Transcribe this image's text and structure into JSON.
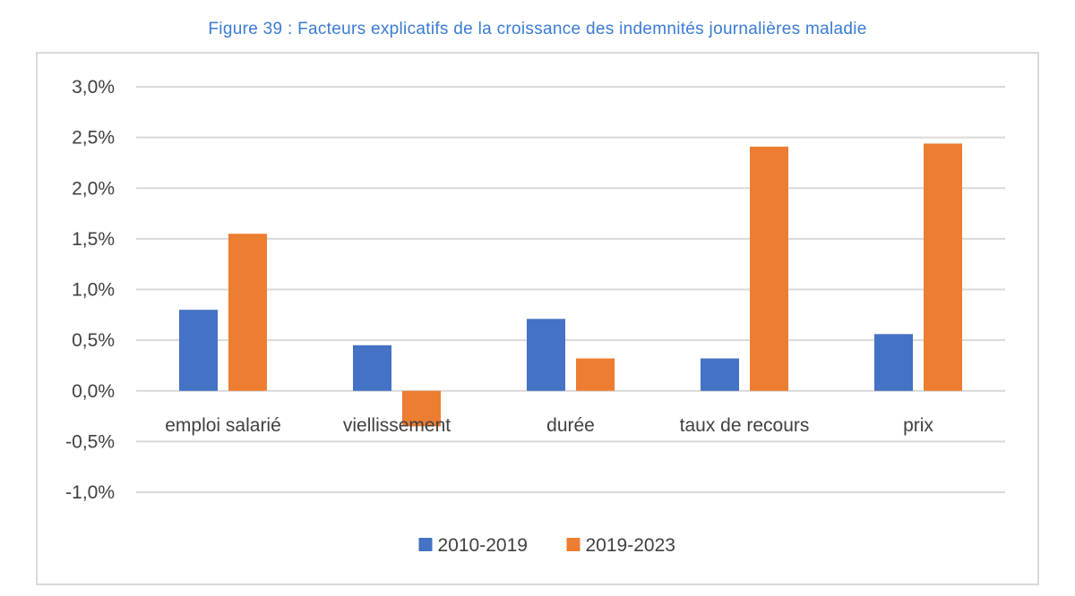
{
  "caption": "Figure 39 :  Facteurs explicatifs de la croissance des indemnités journalières maladie",
  "colors": {
    "series_1": "#4472c4",
    "series_2": "#ed7d31",
    "grid": "#d9d9d9",
    "caption": "#3a7bd5"
  },
  "chart_data": {
    "type": "bar",
    "title": "Figure 39 :  Facteurs explicatifs de la croissance des indemnités journalières maladie",
    "xlabel": "",
    "ylabel": "",
    "ylim": [
      -0.01,
      0.03
    ],
    "yticks": [
      {
        "value": 0.03,
        "label": "3,0%"
      },
      {
        "value": 0.025,
        "label": "2,5%"
      },
      {
        "value": 0.02,
        "label": "2,0%"
      },
      {
        "value": 0.015,
        "label": "1,5%"
      },
      {
        "value": 0.01,
        "label": "1,0%"
      },
      {
        "value": 0.005,
        "label": "0,5%"
      },
      {
        "value": 0.0,
        "label": "0,0%"
      },
      {
        "value": -0.005,
        "label": "-0,5%"
      },
      {
        "value": -0.01,
        "label": "-1,0%"
      }
    ],
    "grid": true,
    "legend_position": "bottom",
    "categories": [
      "emploi salarié",
      "viellissement",
      "durée",
      "taux de recours",
      "prix"
    ],
    "series": [
      {
        "name": "2010-2019",
        "values": [
          0.008,
          0.0045,
          0.0071,
          0.0032,
          0.0056
        ]
      },
      {
        "name": "2019-2023",
        "values": [
          0.0155,
          -0.0035,
          0.0032,
          0.0241,
          0.0244
        ]
      }
    ]
  }
}
